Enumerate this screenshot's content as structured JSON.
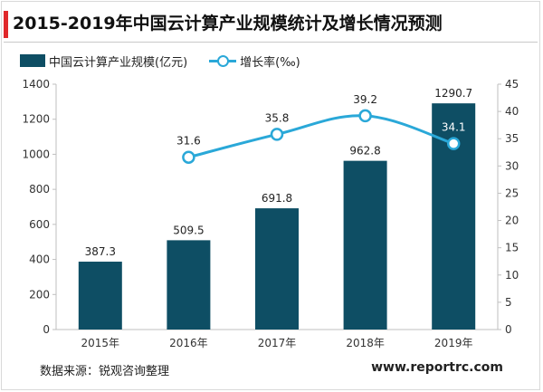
{
  "title": "2015-2019年中国云计算产业规模统计及增长情况预测",
  "source": "数据来源：锐观咨询整理",
  "website": "www.reportrc.com",
  "colors": {
    "bar": "#0e4e64",
    "line": "#2aa8d8",
    "accent": "#e0282b"
  },
  "chart_data": {
    "type": "bar+line",
    "title": "2015-2019年中国云计算产业规模统计及增长情况预测",
    "categories": [
      "2015年",
      "2016年",
      "2017年",
      "2018年",
      "2019年"
    ],
    "series": [
      {
        "name": "中国云计算产业规模(亿元)",
        "type": "bar",
        "axis": "left",
        "values": [
          387.3,
          509.5,
          691.8,
          962.8,
          1290.7
        ],
        "labels": [
          "387.3",
          "509.5",
          "691.8",
          "962.8",
          "1290.7"
        ]
      },
      {
        "name": "增长率(‰)",
        "type": "line",
        "axis": "right",
        "values": [
          null,
          31.6,
          35.8,
          39.2,
          34.1
        ],
        "labels": [
          "",
          "31.6",
          "35.8",
          "39.2",
          "34.1"
        ]
      }
    ],
    "y_left": {
      "min": 0,
      "max": 1400,
      "ticks": [
        "0",
        "200",
        "400",
        "600",
        "800",
        "1000",
        "1200",
        "1400"
      ]
    },
    "y_right": {
      "min": 0,
      "max": 45,
      "ticks": [
        "0",
        "5",
        "10",
        "15",
        "20",
        "25",
        "30",
        "35",
        "40",
        "45"
      ]
    },
    "grid": false,
    "legend": "top-left"
  }
}
